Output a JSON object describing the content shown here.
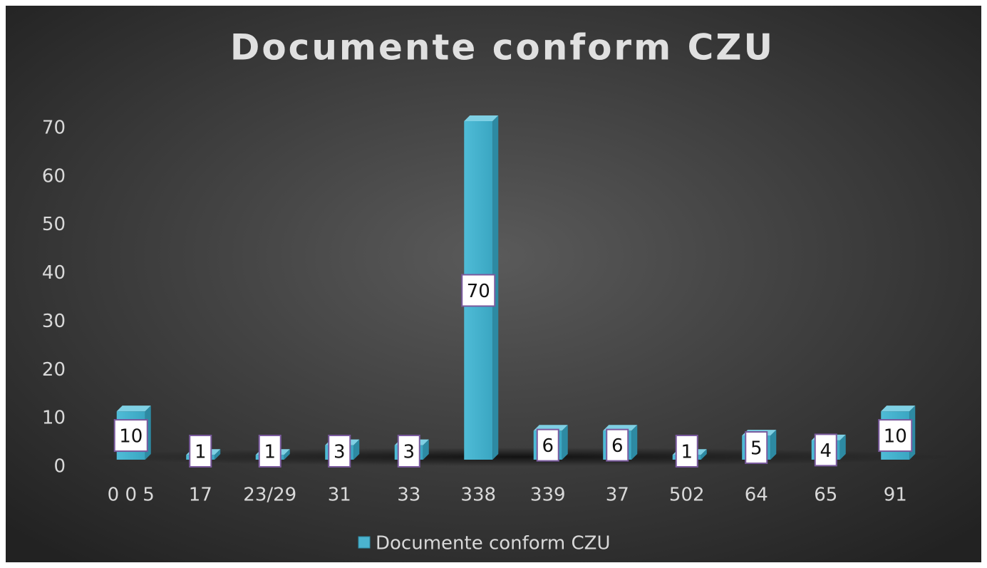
{
  "chart_data": {
    "type": "bar3d",
    "title": "Documente conform CZU",
    "categories": [
      "0 0 5",
      "17",
      "23/29",
      "31",
      "33",
      "338",
      "339",
      "37",
      "502",
      "64",
      "65",
      "91"
    ],
    "series": [
      {
        "name": "Documente conform CZU",
        "color": "#4bb3cf",
        "values": [
          10,
          1,
          1,
          3,
          3,
          70,
          6,
          6,
          1,
          5,
          4,
          10
        ]
      }
    ],
    "ylim": [
      0,
      70
    ],
    "yticks": [
      0,
      10,
      20,
      30,
      40,
      50,
      60,
      70
    ],
    "grid": false,
    "legend": "bottom"
  }
}
